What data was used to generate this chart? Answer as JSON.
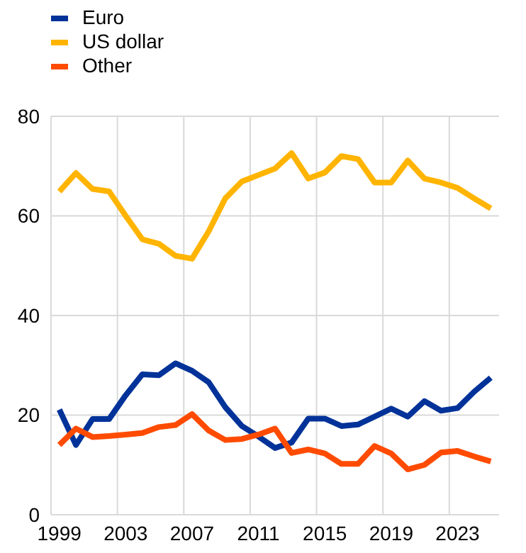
{
  "chart_data": {
    "type": "line",
    "categories": [
      "1999",
      null,
      null,
      null,
      "2003",
      null,
      null,
      null,
      "2007",
      null,
      null,
      null,
      "2011",
      null,
      null,
      null,
      "2015",
      null,
      null,
      null,
      "2019",
      null,
      null,
      null,
      "2023",
      null,
      null
    ],
    "series": [
      {
        "name": "Euro",
        "color": "#003299",
        "values": [
          21.1,
          14,
          19.2,
          19.2,
          24,
          28.2,
          28,
          30.4,
          28.9,
          26.6,
          21.6,
          17.8,
          15.7,
          13.4,
          14.5,
          19.3,
          19.3,
          17.8,
          18.1,
          19.7,
          21.3,
          19.7,
          22.8,
          20.9,
          21.4,
          24.7,
          27.5
        ]
      },
      {
        "name": "US dollar",
        "color": "#ffb400",
        "values": [
          64.9,
          68.6,
          65.4,
          64.9,
          60,
          55.3,
          54.4,
          52,
          51.4,
          56.9,
          63.5,
          66.9,
          68.2,
          69.5,
          72.6,
          67.5,
          68.7,
          72,
          71.4,
          66.7,
          66.7,
          71.1,
          67.5,
          66.7,
          65.6,
          63.5,
          61.5
        ]
      },
      {
        "name": "Other",
        "color": "#ff4b00",
        "values": [
          14,
          17.3,
          15.6,
          15.8,
          16.1,
          16.4,
          17.6,
          18,
          20.2,
          16.9,
          15,
          15.2,
          16.1,
          17.3,
          12.4,
          13.1,
          12.3,
          10.2,
          10.2,
          13.8,
          12.3,
          9.1,
          10,
          12.5,
          12.8,
          11.7,
          10.7
        ]
      }
    ],
    "ylim": [
      0,
      80
    ],
    "yticks": [
      0,
      20,
      40,
      60,
      80
    ],
    "grid": true,
    "legend": "top left"
  }
}
